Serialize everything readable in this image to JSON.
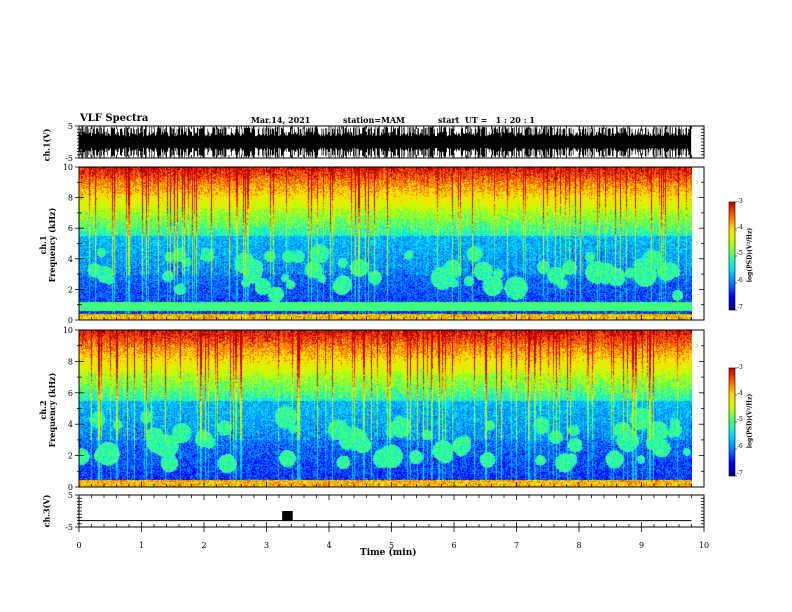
{
  "header": {
    "title": "VLF Spectra",
    "date": "Mar.14, 2021",
    "station": "station=MAM",
    "start_time": "start  UT =   1 : 20 : 1"
  },
  "chart_data": [
    {
      "type": "line",
      "panel": "ch1-waveform",
      "ylabel": "ch.1(V)",
      "ylim": [
        -5,
        5
      ],
      "yticks": [
        -5,
        5
      ],
      "x_unit": "min",
      "xlim": [
        0,
        10
      ],
      "description_values": "dense broadband impulsive signal spanning full range, data ends near 9.8 min"
    },
    {
      "type": "heatmap",
      "panel": "ch1-spectrogram",
      "ylabel_line1": "ch.1",
      "ylabel_line2": "Frequency (kHz)",
      "ylim": [
        0,
        10
      ],
      "yticks": [
        0,
        2,
        4,
        6,
        8,
        10
      ],
      "xlim": [
        0,
        10
      ],
      "colorbar": {
        "label": "log(PSD)(V²/Hz)",
        "range": [
          -7,
          -3
        ],
        "ticks": [
          "-3",
          "-4",
          "-5",
          "-6",
          "-7"
        ]
      }
    },
    {
      "type": "heatmap",
      "panel": "ch2-spectrogram",
      "ylabel_line1": "ch.2",
      "ylabel_line2": "Frequency (kHz)",
      "ylim": [
        0,
        10
      ],
      "yticks": [
        0,
        2,
        4,
        6,
        8,
        10
      ],
      "xlim": [
        0,
        10
      ],
      "colorbar": {
        "label": "log(PSD)(V²/Hz)",
        "range": [
          -7,
          -3
        ],
        "ticks": [
          "-3",
          "-4",
          "-5",
          "-6",
          "-7"
        ]
      }
    },
    {
      "type": "line",
      "panel": "ch3-trigger",
      "ylabel": "ch.3(V)",
      "ylim": [
        -5,
        5
      ],
      "yticks": [
        -5,
        5
      ],
      "xlim": [
        0,
        10
      ],
      "baseline_value": -3,
      "pulse": {
        "x_start": 3.25,
        "x_end": 3.42,
        "high": 0
      }
    }
  ],
  "xaxis": {
    "label": "Time  (min)",
    "ticks": [
      "0",
      "1",
      "2",
      "3",
      "4",
      "5",
      "6",
      "7",
      "8",
      "9",
      "10"
    ],
    "data_end_min": 9.8
  },
  "colors": {
    "palette": [
      "#000080",
      "#0000ff",
      "#0080ff",
      "#00e0ff",
      "#40ff80",
      "#c0ff00",
      "#ffe000",
      "#ff6000",
      "#c00000"
    ]
  }
}
